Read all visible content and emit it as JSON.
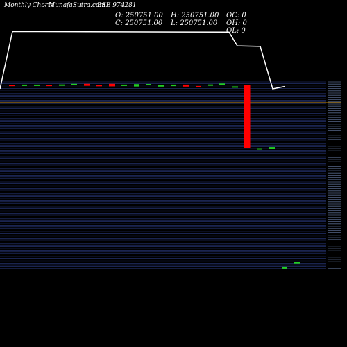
{
  "header": {
    "chart_label": "Monthly Charts",
    "source": "- MunafaSutra.com",
    "symbol": "BSE 974281"
  },
  "ohlc": {
    "open": "O: 250751.00",
    "high": "H: 250751.00",
    "oc": "OC: 0",
    "close": "C: 250751.00",
    "low": "L: 250751.00",
    "oh": "OH: 0",
    "ol": "OL: 0"
  },
  "colors": {
    "up": "#22cc22",
    "down": "#ff0000",
    "line": "#ffffff",
    "reference_line": "#cc8800",
    "grid": "#2a3a80",
    "background": "#000000"
  },
  "chart_data": {
    "type": "candlestick",
    "volume_line": [
      0.96,
      0.97,
      0.97,
      0.97,
      0.97,
      0.97,
      0.97,
      0.97,
      0.97,
      0.97,
      0.97,
      0.97,
      0.97,
      0.97,
      0.97,
      0.97,
      0.97,
      0.97,
      0.97,
      0.86,
      0.86,
      0.84,
      0.84,
      0.52,
      0.52,
      0.53,
      0.58
    ],
    "candles": [
      {
        "dir": "down",
        "open": 0.5,
        "close": 0.0
      },
      {
        "dir": "up",
        "open": 0.0,
        "close": 0.6
      },
      {
        "dir": "up",
        "open": 0.0,
        "close": 0.6
      },
      {
        "dir": "down",
        "open": 0.5,
        "close": -0.2
      },
      {
        "dir": "up",
        "open": -0.3,
        "close": 0.7
      },
      {
        "dir": "up",
        "open": 0.9,
        "close": 1.2
      },
      {
        "dir": "down",
        "open": 1.2,
        "close": -0.4
      },
      {
        "dir": "down",
        "open": 0.4,
        "close": -0.1
      },
      {
        "dir": "down",
        "open": 1.2,
        "close": -0.8
      },
      {
        "dir": "up",
        "open": -0.3,
        "close": 0.6
      },
      {
        "dir": "up",
        "open": -0.9,
        "close": 1.0
      },
      {
        "dir": "up",
        "open": 0.9,
        "close": 1.1
      },
      {
        "dir": "up",
        "open": -0.6,
        "close": 0.1
      },
      {
        "dir": "up",
        "open": -0.6,
        "close": 0.6
      },
      {
        "dir": "down",
        "open": 0.6,
        "close": -1.0
      },
      {
        "dir": "down",
        "open": -0.5,
        "close": -1.2
      },
      {
        "dir": "up",
        "open": 0.5,
        "close": 0.7
      },
      {
        "dir": "up",
        "open": 1.3,
        "close": 1.5
      },
      {
        "dir": "up",
        "open": -0.8,
        "close": -1.8
      },
      {
        "dir": "down",
        "open": 0.0,
        "close": -50.0
      },
      {
        "dir": "up",
        "open": -50.3,
        "close": -50.5
      },
      {
        "dir": "up",
        "open": -49.5,
        "close": -49.8
      },
      {
        "dir": "up",
        "open": -145.5,
        "close": -145.6
      },
      {
        "dir": "up",
        "open": -141.5,
        "close": -141.7
      }
    ],
    "reference_line": -14.0
  }
}
